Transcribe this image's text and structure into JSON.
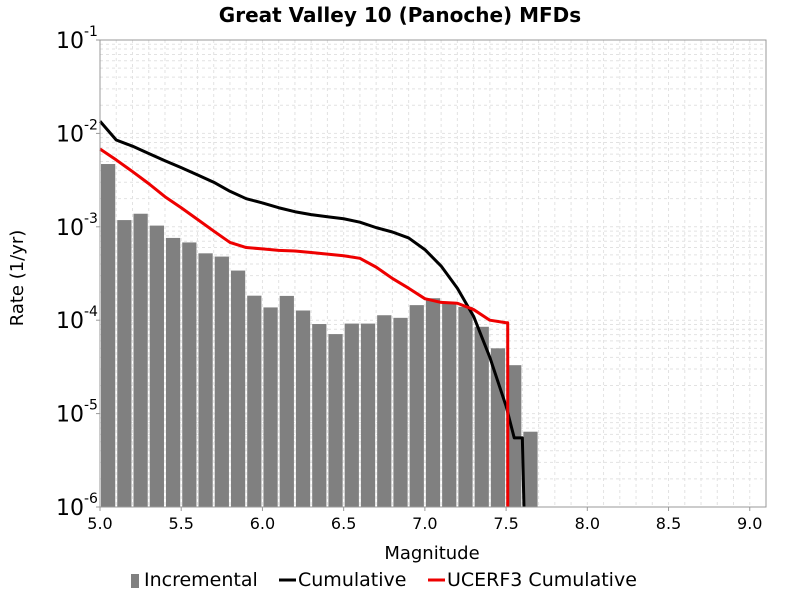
{
  "chart_data": {
    "type": "bar",
    "title": "Great Valley 10 (Panoche) MFDs",
    "xlabel": "Magnitude",
    "ylabel": "Rate (1/yr)",
    "xlim": [
      5.0,
      9.1
    ],
    "ylim": [
      1e-06,
      0.1
    ],
    "y_scale": "log",
    "grid": true,
    "legend_position": "bottom",
    "x_ticks": [
      "5.0",
      "5.5",
      "6.0",
      "6.5",
      "7.0",
      "7.5",
      "8.0",
      "8.5",
      "9.0"
    ],
    "y_ticks": [
      {
        "base": "10",
        "exp": "-6"
      },
      {
        "base": "10",
        "exp": "-5"
      },
      {
        "base": "10",
        "exp": "-4"
      },
      {
        "base": "10",
        "exp": "-3"
      },
      {
        "base": "10",
        "exp": "-2"
      },
      {
        "base": "10",
        "exp": "-1"
      }
    ],
    "legend": [
      {
        "label": "Incremental",
        "color": "#808080",
        "kind": "bar"
      },
      {
        "label": "Cumulative",
        "color": "#000000",
        "kind": "line"
      },
      {
        "label": "UCERF3 Cumulative",
        "color": "#ee0000",
        "kind": "line"
      }
    ],
    "bar_width": 0.1,
    "series": [
      {
        "name": "Incremental",
        "type": "bar",
        "color": "#808080",
        "x": [
          5.05,
          5.15,
          5.25,
          5.35,
          5.45,
          5.55,
          5.65,
          5.75,
          5.85,
          5.95,
          6.05,
          6.15,
          6.25,
          6.35,
          6.45,
          6.55,
          6.65,
          6.75,
          6.85,
          6.95,
          7.05,
          7.15,
          7.25,
          7.35,
          7.45,
          7.55,
          7.65
        ],
        "y": [
          0.0047,
          0.00118,
          0.00138,
          0.00103,
          0.00076,
          0.00068,
          0.00052,
          0.00048,
          0.00034,
          0.000183,
          0.000137,
          0.000182,
          0.000127,
          9.1e-05,
          7.1e-05,
          9.2e-05,
          9.2e-05,
          0.000113,
          0.000106,
          0.000145,
          0.000172,
          0.000152,
          0.000139,
          8.5e-05,
          5e-05,
          3.3e-05,
          6.4e-06
        ]
      },
      {
        "name": "Cumulative",
        "type": "line",
        "color": "#000000",
        "x": [
          5.0,
          5.1,
          5.2,
          5.3,
          5.4,
          5.5,
          5.6,
          5.7,
          5.8,
          5.9,
          6.0,
          6.1,
          6.2,
          6.3,
          6.4,
          6.5,
          6.6,
          6.7,
          6.8,
          6.9,
          7.0,
          7.1,
          7.2,
          7.3,
          7.4,
          7.5,
          7.55,
          7.6,
          7.61
        ],
        "y": [
          0.0135,
          0.0085,
          0.0073,
          0.0061,
          0.0051,
          0.0043,
          0.0036,
          0.003,
          0.0024,
          0.002,
          0.0018,
          0.0016,
          0.00145,
          0.00135,
          0.00128,
          0.00122,
          0.00112,
          0.00098,
          0.00088,
          0.00076,
          0.00057,
          0.00038,
          0.00022,
          0.00011,
          4e-05,
          1.2e-05,
          5.5e-06,
          5.5e-06,
          1e-06
        ]
      },
      {
        "name": "UCERF3 Cumulative",
        "type": "line",
        "color": "#ee0000",
        "x": [
          5.0,
          5.1,
          5.2,
          5.3,
          5.4,
          5.5,
          5.6,
          5.7,
          5.8,
          5.9,
          6.0,
          6.1,
          6.2,
          6.3,
          6.4,
          6.5,
          6.6,
          6.7,
          6.8,
          6.9,
          7.0,
          7.1,
          7.2,
          7.3,
          7.4,
          7.5,
          7.51,
          7.51
        ],
        "y": [
          0.0068,
          0.0052,
          0.0039,
          0.0029,
          0.0021,
          0.0016,
          0.0012,
          0.0009,
          0.00068,
          0.0006,
          0.00058,
          0.00056,
          0.00055,
          0.00053,
          0.00051,
          0.00049,
          0.00046,
          0.00037,
          0.00028,
          0.00022,
          0.00017,
          0.000155,
          0.000152,
          0.00013,
          0.0001,
          9.4e-05,
          9.4e-05,
          1e-06
        ]
      }
    ]
  }
}
